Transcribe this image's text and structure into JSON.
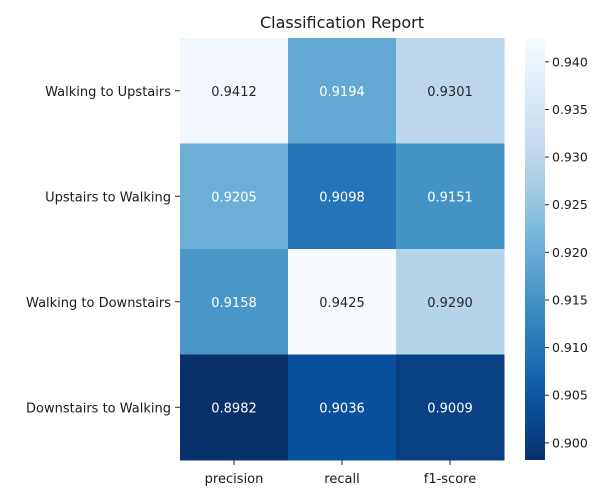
{
  "chart_data": {
    "type": "heatmap",
    "title": "Classification Report",
    "xlabel": "",
    "ylabel": "",
    "x_categories": [
      "precision",
      "recall",
      "f1-score"
    ],
    "y_categories": [
      "Walking to Upstairs",
      "Upstairs to Walking",
      "Walking to Downstairs",
      "Downstairs to Walking"
    ],
    "values": [
      [
        0.9412,
        0.9194,
        0.9301
      ],
      [
        0.9205,
        0.9098,
        0.9151
      ],
      [
        0.9158,
        0.9425,
        0.929
      ],
      [
        0.8982,
        0.9036,
        0.9009
      ]
    ],
    "annotation_format": "4 decimals",
    "colormap": "Blues",
    "colorbar": {
      "range": [
        0.8982,
        0.9425
      ],
      "ticks": [
        0.9,
        0.905,
        0.91,
        0.915,
        0.92,
        0.925,
        0.93,
        0.935,
        0.94
      ],
      "tick_labels": [
        "0.900",
        "0.905",
        "0.910",
        "0.915",
        "0.920",
        "0.925",
        "0.930",
        "0.935",
        "0.940"
      ]
    }
  }
}
